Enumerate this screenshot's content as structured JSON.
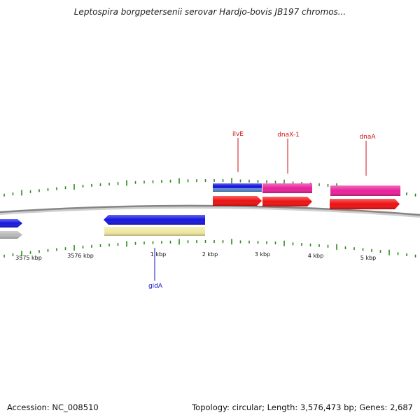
{
  "title": "Leptospira borgpetersenii serovar Hardjo-bovis JB197 chromos...",
  "footer": {
    "accession": "Accession: NC_008510",
    "summary": "Topology: circular; Length: 3,576,473 bp; Genes: 2,687"
  },
  "colors": {
    "backbone": "#888888",
    "tick": "#2a8a1a",
    "blue": "#1515e0",
    "steel": "#4a7fc0",
    "gray": "#b8b8b8",
    "yellow": "#f0e8a0",
    "magenta": "#e8209a",
    "red": "#f01010",
    "label_red": "#d01010",
    "label_blue": "#1010c0"
  },
  "scale_labels": [
    "3575 kbp",
    "3576 kbp",
    "1 kbp",
    "2 kbp",
    "3 kbp",
    "4 kbp",
    "5 kbp"
  ],
  "gene_labels": [
    {
      "text": "ilvE",
      "color": "red"
    },
    {
      "text": "dnaX-1",
      "color": "red"
    },
    {
      "text": "dnaA",
      "color": "red"
    },
    {
      "text": "gidA",
      "color": "blue"
    }
  ],
  "features": [
    {
      "track": "minus-outer",
      "color": "blue",
      "direction": "right"
    },
    {
      "track": "minus-inner",
      "color": "gray",
      "direction": "right"
    },
    {
      "track": "minus-outer",
      "color": "blue",
      "direction": "left"
    },
    {
      "track": "minus-inner",
      "color": "yellow",
      "direction": "none"
    },
    {
      "track": "plus-outer",
      "color": "blue",
      "direction": "none"
    },
    {
      "track": "plus-outer",
      "color": "steel",
      "direction": "none"
    },
    {
      "track": "plus-outer",
      "color": "magenta",
      "direction": "none"
    },
    {
      "track": "plus-outer",
      "color": "magenta",
      "direction": "none"
    },
    {
      "track": "plus-inner",
      "color": "red",
      "direction": "right"
    },
    {
      "track": "plus-inner",
      "color": "red",
      "direction": "right"
    },
    {
      "track": "plus-inner",
      "color": "red",
      "direction": "right"
    }
  ]
}
